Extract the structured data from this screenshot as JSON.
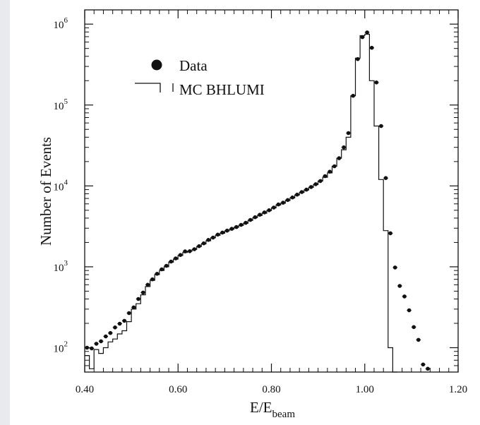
{
  "chart_data": {
    "type": "scatter",
    "title": "",
    "xlabel": "E/E",
    "xlabel_subscript": "beam",
    "ylabel": "Number of Events",
    "xlim": [
      0.4,
      1.2
    ],
    "ylim": [
      50,
      1500000
    ],
    "yscale": "log",
    "grid": false,
    "legend_position": "top-left",
    "x_ticks": [
      {
        "value": 0.4,
        "label": "0.40"
      },
      {
        "value": 0.6,
        "label": "0.60"
      },
      {
        "value": 0.8,
        "label": "0.80"
      },
      {
        "value": 1.0,
        "label": "1.00"
      },
      {
        "value": 1.2,
        "label": "1.20"
      }
    ],
    "y_ticks": [
      {
        "value": 100,
        "base": "10",
        "exp": "2"
      },
      {
        "value": 1000,
        "base": "10",
        "exp": "3"
      },
      {
        "value": 10000,
        "base": "10",
        "exp": "4"
      },
      {
        "value": 100000,
        "base": "10",
        "exp": "5"
      },
      {
        "value": 1000000,
        "base": "10",
        "exp": "6"
      }
    ],
    "series": [
      {
        "name": "Data",
        "kind": "points",
        "x": [
          0.405,
          0.415,
          0.425,
          0.435,
          0.445,
          0.455,
          0.465,
          0.475,
          0.485,
          0.495,
          0.505,
          0.515,
          0.525,
          0.535,
          0.545,
          0.555,
          0.565,
          0.575,
          0.585,
          0.595,
          0.605,
          0.615,
          0.625,
          0.635,
          0.645,
          0.655,
          0.665,
          0.675,
          0.685,
          0.695,
          0.705,
          0.715,
          0.725,
          0.735,
          0.745,
          0.755,
          0.765,
          0.775,
          0.785,
          0.795,
          0.805,
          0.815,
          0.825,
          0.835,
          0.845,
          0.855,
          0.865,
          0.875,
          0.885,
          0.895,
          0.905,
          0.915,
          0.925,
          0.935,
          0.945,
          0.955,
          0.965,
          0.975,
          0.985,
          0.995,
          1.005,
          1.015,
          1.025,
          1.035,
          1.045,
          1.055,
          1.065,
          1.075,
          1.085,
          1.095,
          1.105,
          1.115,
          1.125,
          1.135
        ],
        "y": [
          100,
          98,
          112,
          120,
          138,
          152,
          178,
          198,
          215,
          268,
          315,
          400,
          480,
          600,
          700,
          820,
          930,
          1030,
          1160,
          1270,
          1400,
          1550,
          1560,
          1650,
          1800,
          1950,
          2150,
          2300,
          2500,
          2650,
          2800,
          2950,
          3100,
          3300,
          3500,
          3800,
          4100,
          4400,
          4700,
          5000,
          5400,
          5900,
          6200,
          6700,
          7200,
          7800,
          8400,
          9000,
          9700,
          10500,
          11500,
          13200,
          15000,
          17500,
          22000,
          30000,
          45000,
          130000,
          370000,
          690000,
          790000,
          510000,
          190000,
          55000,
          12500,
          2600,
          980,
          580,
          430,
          290,
          180,
          125,
          62,
          55
        ]
      },
      {
        "name": "MC BHLUMI",
        "kind": "histogram",
        "edges": [
          0.4,
          0.41,
          0.42,
          0.43,
          0.44,
          0.45,
          0.46,
          0.47,
          0.48,
          0.49,
          0.5,
          0.51,
          0.52,
          0.53,
          0.54,
          0.55,
          0.56,
          0.57,
          0.58,
          0.59,
          0.6,
          0.61,
          0.62,
          0.63,
          0.64,
          0.65,
          0.66,
          0.67,
          0.68,
          0.69,
          0.7,
          0.71,
          0.72,
          0.73,
          0.74,
          0.75,
          0.76,
          0.77,
          0.78,
          0.79,
          0.8,
          0.81,
          0.82,
          0.83,
          0.84,
          0.85,
          0.86,
          0.87,
          0.88,
          0.89,
          0.9,
          0.91,
          0.92,
          0.93,
          0.94,
          0.95,
          0.96,
          0.97,
          0.98,
          0.99,
          1.0,
          1.01,
          1.02,
          1.03,
          1.04,
          1.05,
          1.06,
          1.07
        ],
        "values": [
          80,
          55,
          95,
          85,
          100,
          118,
          128,
          148,
          162,
          210,
          300,
          350,
          450,
          570,
          680,
          800,
          900,
          1000,
          1140,
          1240,
          1380,
          1500,
          1560,
          1640,
          1780,
          1920,
          2100,
          2280,
          2450,
          2600,
          2780,
          2920,
          3080,
          3250,
          3450,
          3750,
          4050,
          4300,
          4600,
          4950,
          5350,
          5800,
          6100,
          6600,
          7100,
          7700,
          8300,
          8900,
          9600,
          10400,
          11500,
          12800,
          14500,
          17500,
          22000,
          28000,
          40000,
          130000,
          380000,
          720000,
          750000,
          200000,
          55000,
          12000,
          2800,
          100,
          40
        ]
      }
    ]
  }
}
